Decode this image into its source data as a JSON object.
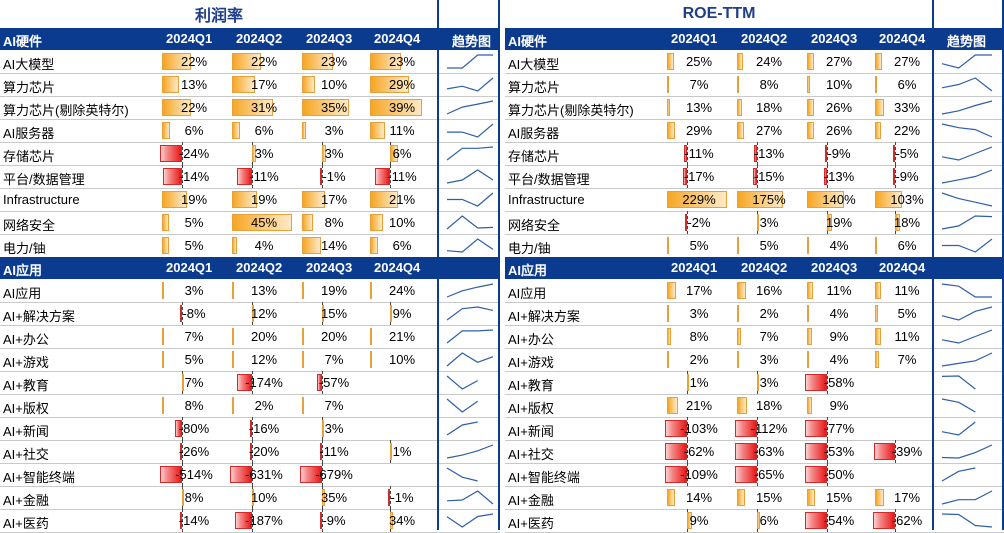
{
  "tables": [
    {
      "title": "利润率",
      "section_headers": [
        {
          "label": "AI硬件",
          "quarters": [
            "2024Q1",
            "2024Q2",
            "2024Q3",
            "2024Q4"
          ],
          "trend": "趋势图"
        },
        {
          "label": "AI应用",
          "quarters": [
            "2024Q1",
            "2024Q2",
            "2024Q3",
            "2024Q4"
          ],
          "trend": ""
        }
      ],
      "sections": [
        {
          "rows": [
            {
              "name": "AI大模型",
              "values": [
                "22%",
                "22%",
                "23%",
                "23%"
              ],
              "num": [
                22,
                22,
                23,
                23
              ]
            },
            {
              "name": "算力芯片",
              "values": [
                "13%",
                "17%",
                "10%",
                "29%"
              ],
              "num": [
                13,
                17,
                10,
                29
              ]
            },
            {
              "name": "算力芯片(剔除英特尔)",
              "values": [
                "22%",
                "31%",
                "35%",
                "39%"
              ],
              "num": [
                22,
                31,
                35,
                39
              ]
            },
            {
              "name": "AI服务器",
              "values": [
                "6%",
                "6%",
                "3%",
                "11%"
              ],
              "num": [
                6,
                6,
                3,
                11
              ]
            },
            {
              "name": "存储芯片",
              "values": [
                "-24%",
                "3%",
                "3%",
                "6%"
              ],
              "num": [
                -24,
                3,
                3,
                6
              ]
            },
            {
              "name": "平台/数据管理",
              "values": [
                "-14%",
                "-11%",
                "-1%",
                "-11%"
              ],
              "num": [
                -14,
                -11,
                -1,
                -11
              ]
            },
            {
              "name": "Infrastructure",
              "values": [
                "19%",
                "19%",
                "17%",
                "21%"
              ],
              "num": [
                19,
                19,
                17,
                21
              ]
            },
            {
              "name": "网络安全",
              "values": [
                "5%",
                "45%",
                "8%",
                "10%"
              ],
              "num": [
                5,
                45,
                8,
                10
              ]
            },
            {
              "name": "电力/铀",
              "values": [
                "5%",
                "4%",
                "14%",
                "6%"
              ],
              "num": [
                5,
                4,
                14,
                6
              ]
            }
          ]
        },
        {
          "rows": [
            {
              "name": "AI应用",
              "values": [
                "3%",
                "13%",
                "19%",
                "24%"
              ],
              "num": [
                3,
                13,
                19,
                24
              ]
            },
            {
              "name": "AI+解决方案",
              "values": [
                "-8%",
                "12%",
                "15%",
                "9%"
              ],
              "num": [
                -8,
                12,
                15,
                9
              ]
            },
            {
              "name": "AI+办公",
              "values": [
                "7%",
                "20%",
                "20%",
                "21%"
              ],
              "num": [
                7,
                20,
                20,
                21
              ]
            },
            {
              "name": "AI+游戏",
              "values": [
                "5%",
                "12%",
                "7%",
                "10%"
              ],
              "num": [
                5,
                12,
                7,
                10
              ]
            },
            {
              "name": "AI+教育",
              "values": [
                "7%",
                "-174%",
                "-57%",
                ""
              ],
              "num": [
                7,
                -174,
                -57,
                null
              ]
            },
            {
              "name": "AI+版权",
              "values": [
                "8%",
                "2%",
                "7%",
                ""
              ],
              "num": [
                8,
                2,
                7,
                null
              ]
            },
            {
              "name": "AI+新闻",
              "values": [
                "-80%",
                "-16%",
                "3%",
                ""
              ],
              "num": [
                -80,
                -16,
                3,
                null
              ]
            },
            {
              "name": "AI+社交",
              "values": [
                "-26%",
                "-20%",
                "-11%",
                "1%"
              ],
              "num": [
                -26,
                -20,
                -11,
                1
              ]
            },
            {
              "name": "AI+智能终端",
              "values": [
                "-514%",
                "-631%",
                "-679%",
                ""
              ],
              "num": [
                -514,
                -631,
                -679,
                null
              ]
            },
            {
              "name": "AI+金融",
              "values": [
                "8%",
                "10%",
                "35%",
                "-1%"
              ],
              "num": [
                8,
                10,
                35,
                -1
              ]
            },
            {
              "name": "AI+医药",
              "values": [
                "-14%",
                "-187%",
                "-9%",
                "34%"
              ],
              "num": [
                -14,
                -187,
                -9,
                34
              ]
            }
          ]
        }
      ]
    },
    {
      "title": "ROE-TTM",
      "section_headers": [
        {
          "label": "AI硬件",
          "quarters": [
            "2024Q1",
            "2024Q2",
            "2024Q3",
            "2024Q4"
          ],
          "trend": "趋势图"
        },
        {
          "label": "AI应用",
          "quarters": [
            "2024Q1",
            "2024Q2",
            "2024Q3",
            "2024Q4"
          ],
          "trend": ""
        }
      ],
      "sections": [
        {
          "rows": [
            {
              "name": "AI大模型",
              "values": [
                "25%",
                "24%",
                "27%",
                "27%"
              ],
              "num": [
                25,
                24,
                27,
                27
              ]
            },
            {
              "name": "算力芯片",
              "values": [
                "7%",
                "8%",
                "10%",
                "6%"
              ],
              "num": [
                7,
                8,
                10,
                6
              ]
            },
            {
              "name": "算力芯片(剔除英特尔)",
              "values": [
                "13%",
                "18%",
                "26%",
                "33%"
              ],
              "num": [
                13,
                18,
                26,
                33
              ]
            },
            {
              "name": "AI服务器",
              "values": [
                "29%",
                "27%",
                "26%",
                "22%"
              ],
              "num": [
                29,
                27,
                26,
                22
              ]
            },
            {
              "name": "存储芯片",
              "values": [
                "-11%",
                "-13%",
                "-9%",
                "-5%"
              ],
              "num": [
                -11,
                -13,
                -9,
                -5
              ]
            },
            {
              "name": "平台/数据管理",
              "values": [
                "-17%",
                "-15%",
                "-13%",
                "-9%"
              ],
              "num": [
                -17,
                -15,
                -13,
                -9
              ]
            },
            {
              "name": "Infrastructure",
              "values": [
                "229%",
                "175%",
                "140%",
                "103%"
              ],
              "num": [
                229,
                175,
                140,
                103
              ]
            },
            {
              "name": "网络安全",
              "values": [
                "-2%",
                "3%",
                "19%",
                "18%"
              ],
              "num": [
                -2,
                3,
                19,
                18
              ]
            },
            {
              "name": "电力/铀",
              "values": [
                "5%",
                "5%",
                "4%",
                "6%"
              ],
              "num": [
                5,
                5,
                4,
                6
              ]
            }
          ]
        },
        {
          "rows": [
            {
              "name": "AI应用",
              "values": [
                "17%",
                "16%",
                "11%",
                "11%"
              ],
              "num": [
                17,
                16,
                11,
                11
              ]
            },
            {
              "name": "AI+解决方案",
              "values": [
                "3%",
                "2%",
                "4%",
                "5%"
              ],
              "num": [
                3,
                2,
                4,
                5
              ]
            },
            {
              "name": "AI+办公",
              "values": [
                "8%",
                "7%",
                "9%",
                "11%"
              ],
              "num": [
                8,
                7,
                9,
                11
              ]
            },
            {
              "name": "AI+游戏",
              "values": [
                "2%",
                "3%",
                "4%",
                "7%"
              ],
              "num": [
                2,
                3,
                4,
                7
              ]
            },
            {
              "name": "AI+教育",
              "values": [
                "1%",
                "3%",
                "-58%",
                ""
              ],
              "num": [
                1,
                3,
                -58,
                null
              ]
            },
            {
              "name": "AI+版权",
              "values": [
                "21%",
                "18%",
                "9%",
                ""
              ],
              "num": [
                21,
                18,
                9,
                null
              ]
            },
            {
              "name": "AI+新闻",
              "values": [
                "-103%",
                "-112%",
                "-77%",
                ""
              ],
              "num": [
                -103,
                -112,
                -77,
                null
              ]
            },
            {
              "name": "AI+社交",
              "values": [
                "-62%",
                "-63%",
                "-53%",
                "-39%"
              ],
              "num": [
                -62,
                -63,
                -53,
                -39
              ]
            },
            {
              "name": "AI+智能终端",
              "values": [
                "-109%",
                "-65%",
                "-50%",
                ""
              ],
              "num": [
                -109,
                -65,
                -50,
                null
              ]
            },
            {
              "name": "AI+金融",
              "values": [
                "14%",
                "15%",
                "15%",
                "17%"
              ],
              "num": [
                14,
                15,
                15,
                17
              ]
            },
            {
              "name": "AI+医药",
              "values": [
                "9%",
                "6%",
                "-54%",
                "-62%"
              ],
              "num": [
                9,
                6,
                -54,
                -62
              ]
            }
          ]
        }
      ]
    }
  ],
  "colors": {
    "header_bg": "#0b3b8f",
    "title_text": "#1f3f8a",
    "positive_bar": "#f6a623",
    "negative_bar": "#e81818",
    "sparkline": "#2f5fa7"
  }
}
